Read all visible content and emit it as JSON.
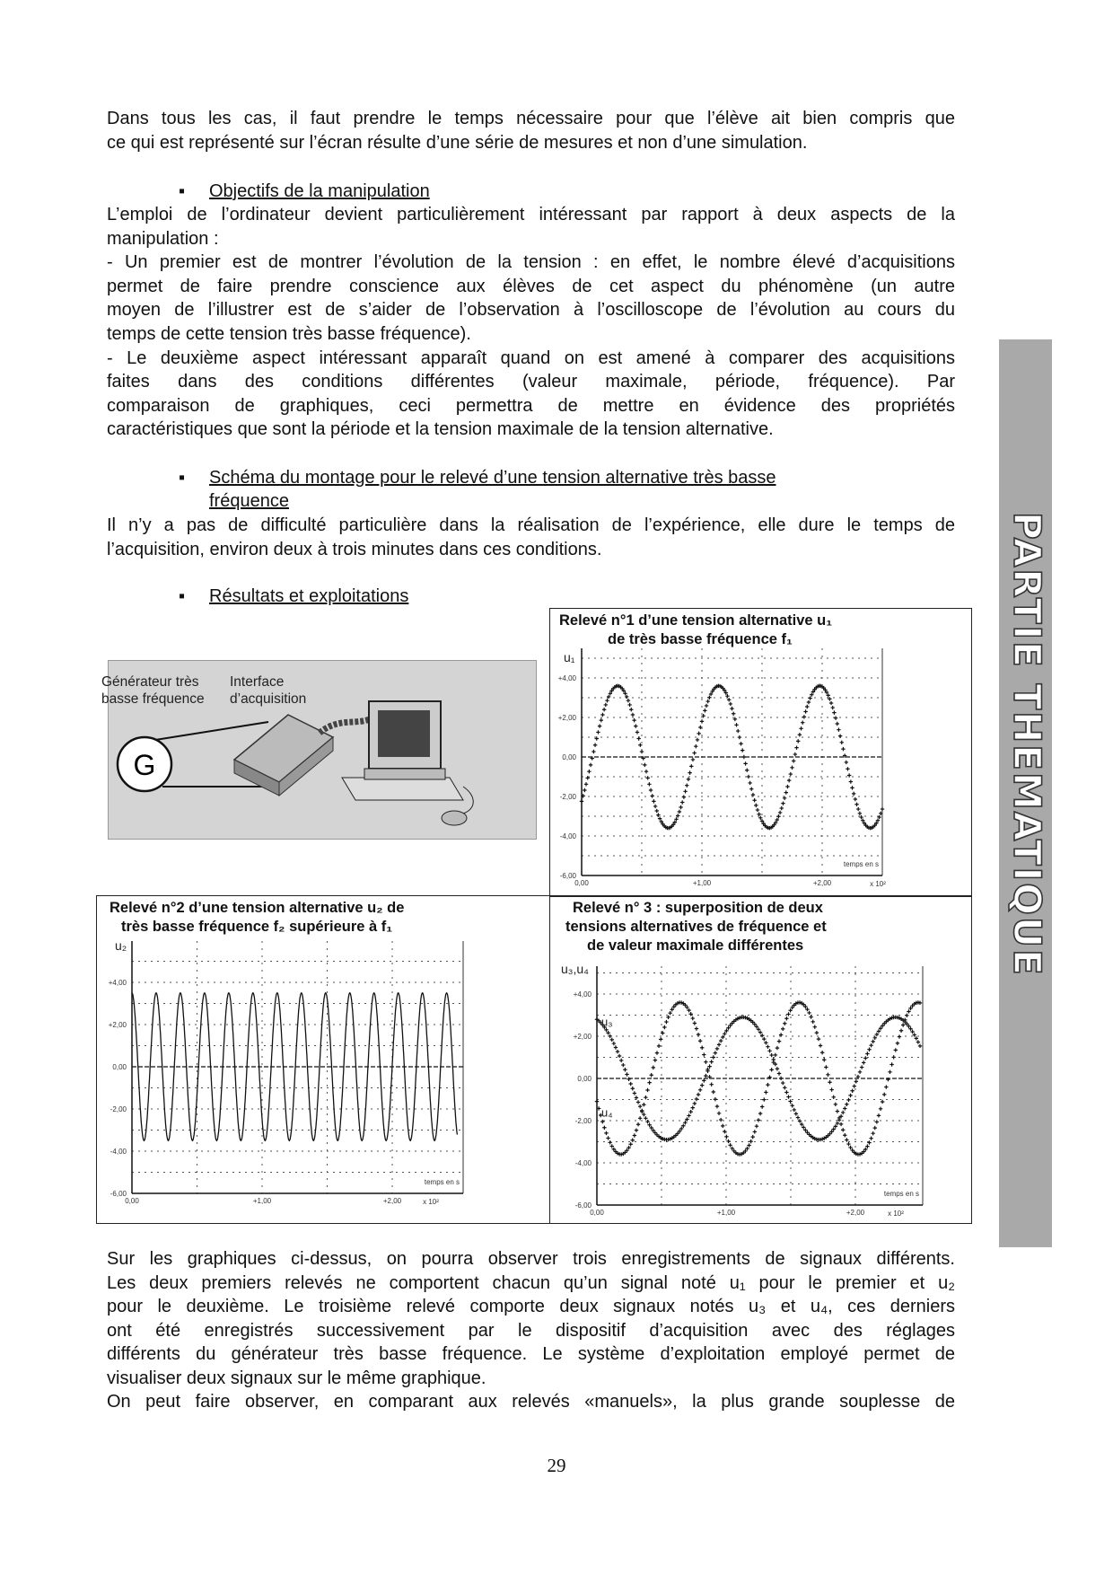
{
  "intro_lines": [
    "Dans tous les cas, il faut prendre le temps nécessaire pour que l’élève ait bien compris que",
    "ce qui est représenté sur l’écran résulte d’une série de mesures et non d’une simulation."
  ],
  "section1": {
    "heading": "Objectifs de la manipulation",
    "lines": [
      "L’emploi de l’ordinateur devient particulièrement intéressant par rapport à deux aspects de la",
      "manipulation :",
      "- Un premier est de montrer l’évolution de la tension : en effet, le nombre élevé d’acquisitions",
      "permet de faire prendre conscience aux élèves de cet aspect du phénomène (un autre",
      "moyen de l’illustrer est de s’aider de l’observation à l’oscilloscope de l’évolution au cours du",
      "temps de cette tension très basse fréquence).",
      "- Le deuxième aspect intéressant apparaît quand on est amené à comparer des acquisitions",
      "faites dans des conditions différentes (valeur maximale, période, fréquence). Par",
      "comparaison de graphiques, ceci permettra de mettre en évidence des propriétés",
      "caractéristiques que sont la période et la tension maximale de la tension alternative."
    ]
  },
  "section2": {
    "heading_lines": [
      "Schéma du montage pour le relevé d’une tension alternative très basse",
      "fréquence"
    ],
    "lines": [
      "Il n’y a pas de difficulté particulière dans la réalisation de l’expérience, elle dure le temps de",
      "l’acquisition, environ deux à trois minutes dans ces conditions."
    ]
  },
  "section3": {
    "heading": "Résultats et exploitations"
  },
  "diagram": {
    "generator_label": [
      "Générateur très",
      "basse fréquence"
    ],
    "interface_label": [
      "Interface",
      "d’acquisition"
    ],
    "generator_symbol": "G"
  },
  "chart_data": [
    {
      "type": "scatter",
      "title": [
        "Relevé n°1 d’une tension alternative u₁",
        "de très basse fréquence f₁"
      ],
      "ylabel": "u₁",
      "xlabel": "temps en s",
      "x_multiplier": "x 10²",
      "xlim": [
        0,
        2.5
      ],
      "ylim": [
        -6,
        5
      ],
      "xticks": [
        "0,00",
        "+1,00",
        "+2,00"
      ],
      "xtick_values": [
        0,
        1,
        2
      ],
      "yticks": [
        "+4,00",
        "+2,00",
        "0,00",
        "-2,00",
        "-4,00",
        "-6,00"
      ],
      "ytick_values": [
        4,
        2,
        0,
        -2,
        -4,
        -6
      ],
      "grid": true,
      "marker": "+",
      "series": [
        {
          "name": "u₁",
          "waveform": "sine",
          "amplitude": 3.6,
          "period": 0.84,
          "first_peak_t": 0.3
        }
      ]
    },
    {
      "type": "line",
      "title": [
        "Relevé n°2 d’une tension alternative u₂ de",
        "très basse fréquence f₂  supérieure à f₁"
      ],
      "ylabel": "u₂",
      "xlabel": "temps en s",
      "x_multiplier": "x 10²",
      "xlim": [
        0,
        2.5
      ],
      "ylim": [
        -6,
        5
      ],
      "xticks": [
        "0,00",
        "+1,00",
        "+2,00"
      ],
      "xtick_values": [
        0,
        1,
        2
      ],
      "yticks": [
        "+4,00",
        "+2,00",
        "0,00",
        "-2,00",
        "-4,00",
        "-6,00"
      ],
      "ytick_values": [
        4,
        2,
        0,
        -2,
        -4,
        -6
      ],
      "grid": true,
      "series": [
        {
          "name": "u₂",
          "waveform": "sine",
          "amplitude": 3.5,
          "period": 0.186,
          "first_peak_t": 0.0
        }
      ]
    },
    {
      "type": "scatter",
      "title": [
        "Relevé n° 3 : superposition de deux",
        "tensions alternatives de fréquence et",
        "de valeur maximale différentes"
      ],
      "ylabel": "u₃,u₄",
      "xlabel": "temps en s",
      "x_multiplier": "x 10²",
      "xlim": [
        0,
        2.5
      ],
      "ylim": [
        -6,
        5
      ],
      "xticks": [
        "0,00",
        "+1,00",
        "+2,00"
      ],
      "xtick_values": [
        0,
        1,
        2
      ],
      "yticks": [
        "+4,00",
        "+2,00",
        "0,00",
        "-2,00",
        "-4,00",
        "-6,00"
      ],
      "ytick_values": [
        4,
        2,
        0,
        -2,
        -4,
        -6
      ],
      "grid": true,
      "marker": "+",
      "series": [
        {
          "name": "u₃",
          "waveform": "sine",
          "amplitude": 2.9,
          "period": 1.18,
          "first_peak_t": 1.13
        },
        {
          "name": "u₄",
          "waveform": "sine",
          "amplitude": 3.6,
          "period": 0.92,
          "first_peak_t": 0.645
        }
      ]
    }
  ],
  "bottom_lines": [
    "Sur les graphiques ci-dessus, on pourra observer trois enregistrements de signaux différents.",
    "Les deux premiers relevés ne comportent chacun qu’un signal noté u₁ pour le premier et u₂",
    "pour le deuxième. Le troisième relevé comporte deux signaux notés u₃ et u₄, ces derniers",
    "ont été enregistrés successivement par le dispositif d’acquisition avec des réglages",
    "différents du générateur très basse fréquence. Le système d’exploitation employé permet de",
    "visualiser deux signaux sur le même graphique.",
    "On peut faire observer, en comparant aux relevés «manuels», la plus grande souplesse de"
  ],
  "sidebar": {
    "label": "PARTIE THEMATIQUE"
  },
  "page_number": "29"
}
